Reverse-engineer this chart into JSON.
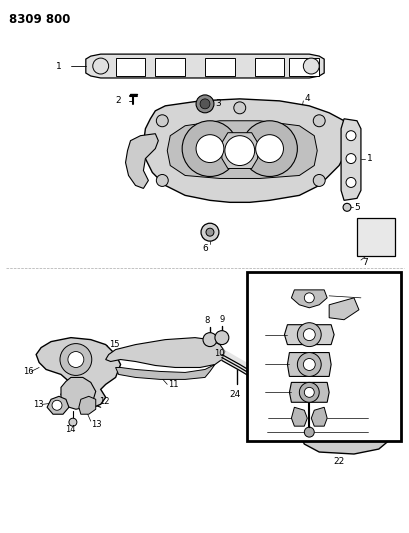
{
  "title": "8309 800",
  "background_color": "#ffffff",
  "line_color": "#000000",
  "fig_w": 4.1,
  "fig_h": 5.33,
  "dpi": 100
}
